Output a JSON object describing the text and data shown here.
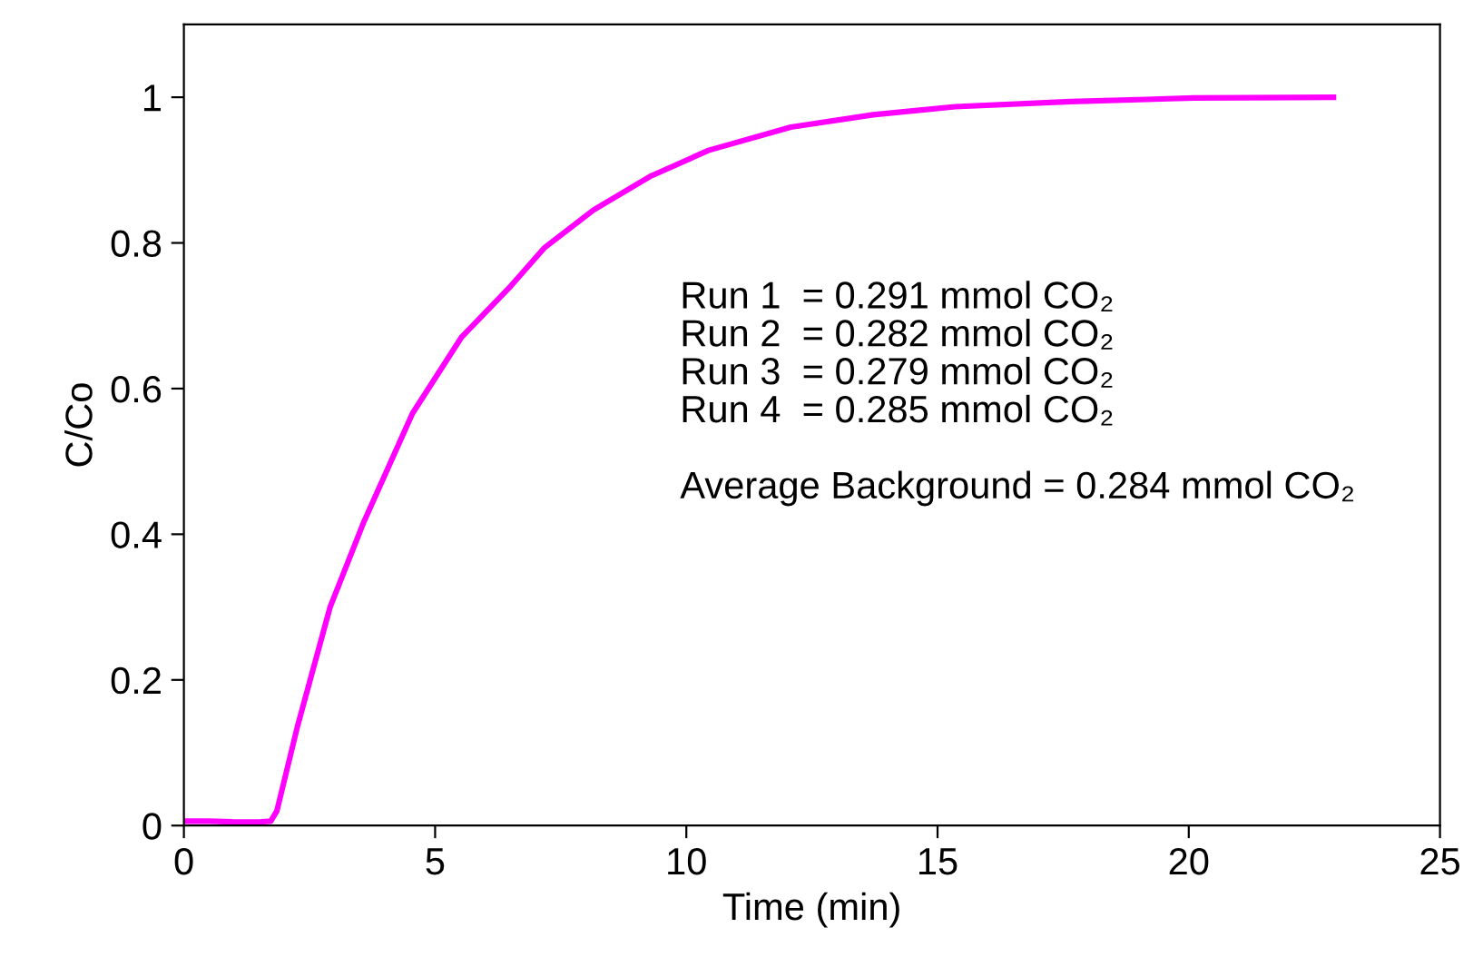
{
  "chart_data": {
    "type": "line",
    "xlabel": "Time (min)",
    "ylabel": "C/Co",
    "xlim": [
      0,
      25
    ],
    "xticks": [
      0,
      5,
      10,
      15,
      20,
      25
    ],
    "ylim": [
      0,
      1.1
    ],
    "yticks": [
      0,
      0.2,
      0.4,
      0.6,
      0.8,
      1
    ],
    "grid": false,
    "marker": "none",
    "line_style": "solid",
    "series": [
      {
        "color": "#ff00ff",
        "x": [
          0,
          0.5,
          1.0,
          1.5,
          1.73,
          1.85,
          2.26,
          2.91,
          3.57,
          4.55,
          5.53,
          6.51,
          7.17,
          8.15,
          9.3,
          10.44,
          12.08,
          13.72,
          15.35,
          17.64,
          20.1,
          22.88
        ],
        "values": [
          0.006,
          0.006,
          0.005,
          0.005,
          0.006,
          0.02,
          0.136,
          0.3,
          0.415,
          0.566,
          0.671,
          0.741,
          0.793,
          0.845,
          0.892,
          0.927,
          0.959,
          0.976,
          0.987,
          0.994,
          0.999,
          1.0
        ]
      }
    ],
    "annotations": [
      "Run 1  = 0.291 mmol CO₂\nRun 2  = 0.282 mmol CO₂\nRun 3  = 0.279 mmol CO₂\nRun 4  = 0.285 mmol CO₂\n\nAverage Background = 0.284 mmol CO₂"
    ]
  }
}
